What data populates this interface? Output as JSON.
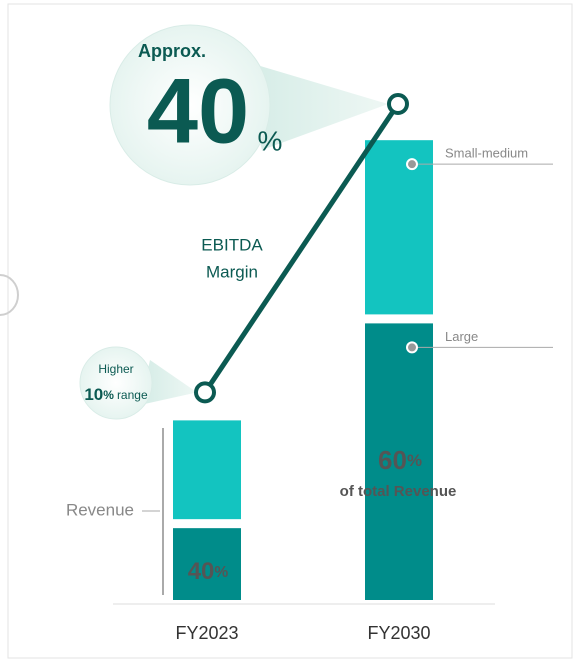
{
  "chart_data": {
    "type": "bar",
    "categories": [
      "FY2023",
      "FY2030"
    ],
    "series": [
      {
        "name": "Large",
        "color": "#008c8a",
        "values": [
          40,
          154
        ]
      },
      {
        "name": "Small-medium",
        "color": "#13c4c0",
        "values": [
          60,
          102
        ]
      }
    ],
    "ylim": [
      0,
      260
    ],
    "axis_label": "Revenue",
    "line": {
      "label": [
        "EBITDA",
        "Margin"
      ],
      "color": "#0b5a52",
      "axis": "y2",
      "values": [
        15,
        40
      ]
    },
    "y2lim": [
      -3,
      40
    ],
    "share_labels": [
      {
        "number": "40",
        "unit": "%"
      },
      {
        "number": "60",
        "unit": "%",
        "text": "of total Revenue"
      }
    ],
    "callouts": [
      {
        "prefix": "Higher",
        "number": "10",
        "unit": "%",
        "suffix": "range"
      },
      {
        "prefix": "Approx.",
        "number": "40",
        "unit": "%"
      }
    ]
  }
}
